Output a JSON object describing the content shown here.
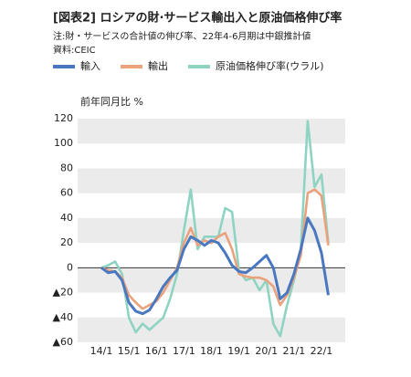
{
  "chart_data": {
    "type": "line",
    "title": "[図表2] ロシアの財·サービス輸出入と原油価格伸び率",
    "subtitle": "注:財・サービスの合計値の伸び率、22年4-6月期は中銀推計値",
    "source": "資料:CEIC",
    "y_label": "前年同月比 %",
    "categories": [
      "14/1",
      null,
      null,
      null,
      "15/1",
      null,
      null,
      null,
      "16/1",
      null,
      null,
      null,
      "17/1",
      null,
      null,
      null,
      "18/1",
      null,
      null,
      null,
      "19/1",
      null,
      null,
      null,
      "20/1",
      null,
      null,
      null,
      "21/1",
      null,
      null,
      null,
      "22/1",
      null
    ],
    "series": [
      {
        "name": "輸入",
        "color": "#4a78c0",
        "values": [
          0,
          -4,
          -3,
          -10,
          -28,
          -35,
          -37,
          -34,
          -25,
          -15,
          -8,
          -2,
          15,
          25,
          22,
          18,
          22,
          20,
          12,
          2,
          -3,
          -4,
          0,
          5,
          10,
          0,
          -25,
          -20,
          -5,
          15,
          40,
          30,
          12,
          -22
        ]
      },
      {
        "name": "輸出",
        "color": "#e9a27c",
        "values": [
          0,
          -2,
          -3,
          -8,
          -22,
          -28,
          -33,
          -30,
          -27,
          -20,
          -10,
          0,
          20,
          32,
          18,
          22,
          20,
          25,
          28,
          15,
          -5,
          -7,
          -8,
          -8,
          -10,
          -15,
          -30,
          -22,
          -8,
          10,
          60,
          63,
          58,
          18
        ]
      },
      {
        "name": "原油価格伸び率(ウラル)",
        "color": "#8fd3c2",
        "values": [
          0,
          2,
          5,
          -5,
          -40,
          -52,
          -45,
          -50,
          -45,
          -40,
          -25,
          -5,
          30,
          63,
          15,
          25,
          25,
          25,
          48,
          45,
          -2,
          -10,
          -8,
          -18,
          -10,
          -45,
          -55,
          -30,
          -10,
          15,
          118,
          65,
          75,
          20
        ]
      }
    ],
    "ylim": [
      -60,
      120
    ],
    "yticks": [
      {
        "value": -60,
        "label": "▲60"
      },
      {
        "value": -40,
        "label": "▲40"
      },
      {
        "value": -20,
        "label": "▲20"
      },
      0,
      20,
      40,
      60,
      80,
      100,
      120
    ],
    "grid": "bands"
  }
}
